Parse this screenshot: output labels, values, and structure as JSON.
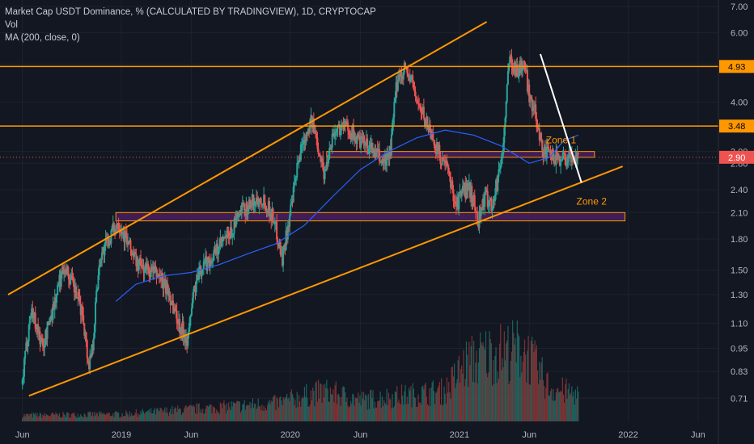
{
  "chart_data": {
    "type": "line",
    "title": "Market Cap USDT Dominance, % (CALCULATED BY TRADINGVIEW), 1D, CRYPTOCAP",
    "indicators": [
      "Vol",
      "MA (200, close, 0)"
    ],
    "y_scale": "log",
    "ylim": [
      0.62,
      7.2
    ],
    "xlim": [
      "2018-05-01",
      "2022-07-15"
    ],
    "x_ticks": [
      {
        "date": "2018-06-01",
        "label": "Jun"
      },
      {
        "date": "2019-01-01",
        "label": "2019"
      },
      {
        "date": "2019-06-01",
        "label": "Jun"
      },
      {
        "date": "2020-01-01",
        "label": "2020"
      },
      {
        "date": "2020-06-01",
        "label": "Jun"
      },
      {
        "date": "2021-01-01",
        "label": "2021"
      },
      {
        "date": "2021-06-01",
        "label": "Jun"
      },
      {
        "date": "2022-01-01",
        "label": "2022"
      },
      {
        "date": "2022-06-01",
        "label": "Jun"
      }
    ],
    "y_ticks": [
      "7.00",
      "6.00",
      "5.00",
      "4.00",
      "3.00",
      "2.80",
      "2.40",
      "2.10",
      "1.80",
      "1.50",
      "1.30",
      "1.10",
      "0.95",
      "0.83",
      "0.71"
    ],
    "series": [
      {
        "name": "USDT Dominance",
        "style": "candles",
        "x": [
          "2018-06-01",
          "2018-06-20",
          "2018-07-15",
          "2018-08-10",
          "2018-08-30",
          "2018-09-20",
          "2018-10-10",
          "2018-10-22",
          "2018-11-01",
          "2018-11-15",
          "2018-12-10",
          "2018-12-25",
          "2019-01-15",
          "2019-02-05",
          "2019-03-01",
          "2019-03-25",
          "2019-04-15",
          "2019-05-05",
          "2019-05-25",
          "2019-06-05",
          "2019-06-25",
          "2019-07-15",
          "2019-08-05",
          "2019-08-25",
          "2019-09-15",
          "2019-10-05",
          "2019-11-01",
          "2019-11-25",
          "2019-12-15",
          "2020-01-05",
          "2020-01-25",
          "2020-02-15",
          "2020-03-05",
          "2020-03-15",
          "2020-04-01",
          "2020-04-20",
          "2020-05-10",
          "2020-05-25",
          "2020-06-15",
          "2020-07-01",
          "2020-07-20",
          "2020-08-05",
          "2020-08-20",
          "2020-09-05",
          "2020-09-20",
          "2020-10-05",
          "2020-10-25",
          "2020-11-15",
          "2020-12-05",
          "2020-12-25",
          "2021-01-10",
          "2021-01-25",
          "2021-02-10",
          "2021-02-25",
          "2021-03-15",
          "2021-04-05",
          "2021-04-20",
          "2021-05-05",
          "2021-05-20",
          "2021-06-01",
          "2021-06-15",
          "2021-07-01",
          "2021-07-20",
          "2021-08-05",
          "2021-08-20",
          "2021-09-05",
          "2021-09-15"
        ],
        "values": [
          0.77,
          1.2,
          0.95,
          1.25,
          1.55,
          1.35,
          1.15,
          0.85,
          1.0,
          1.6,
          1.85,
          2.0,
          1.75,
          1.55,
          1.5,
          1.45,
          1.3,
          1.1,
          1.0,
          1.3,
          1.55,
          1.6,
          1.75,
          1.85,
          2.1,
          2.2,
          2.3,
          2.05,
          1.6,
          2.2,
          3.1,
          3.6,
          3.0,
          2.6,
          3.3,
          3.5,
          3.4,
          3.2,
          3.1,
          3.0,
          2.8,
          3.0,
          4.6,
          4.9,
          4.5,
          3.9,
          3.5,
          3.0,
          2.7,
          2.2,
          2.4,
          2.4,
          2.0,
          2.3,
          2.2,
          3.0,
          5.2,
          4.8,
          5.0,
          4.2,
          3.7,
          3.0,
          2.9,
          2.9,
          2.9,
          2.9,
          2.9
        ]
      },
      {
        "name": "MA (200, close, 0)",
        "style": "line",
        "color": "#2962ff",
        "x": [
          "2018-12-20",
          "2019-02-01",
          "2019-04-01",
          "2019-06-01",
          "2019-08-01",
          "2019-10-01",
          "2019-12-01",
          "2020-02-01",
          "2020-04-01",
          "2020-06-01",
          "2020-08-01",
          "2020-10-01",
          "2020-12-01",
          "2021-02-01",
          "2021-04-01",
          "2021-06-01",
          "2021-07-15",
          "2021-08-15",
          "2021-09-15"
        ],
        "values": [
          1.25,
          1.38,
          1.45,
          1.48,
          1.55,
          1.65,
          1.75,
          1.95,
          2.3,
          2.7,
          3.0,
          3.25,
          3.4,
          3.3,
          3.1,
          2.8,
          2.9,
          3.2,
          3.3
        ]
      }
    ],
    "volume": [
      {
        "date": "2018-06-01",
        "value": 0.1
      },
      {
        "date": "2019-01-01",
        "value": 0.12
      },
      {
        "date": "2019-06-01",
        "value": 0.2
      },
      {
        "date": "2019-12-01",
        "value": 0.3
      },
      {
        "date": "2020-03-15",
        "value": 0.5
      },
      {
        "date": "2020-06-01",
        "value": 0.35
      },
      {
        "date": "2020-12-01",
        "value": 0.5
      },
      {
        "date": "2021-01-15",
        "value": 0.95
      },
      {
        "date": "2021-02-25",
        "value": 1.1
      },
      {
        "date": "2021-05-20",
        "value": 1.2
      },
      {
        "date": "2021-07-15",
        "value": 0.55
      },
      {
        "date": "2021-09-15",
        "value": 0.45
      }
    ],
    "current_price": {
      "value": 2.9,
      "label": "2.90",
      "color": "#ef5350"
    },
    "horizontal_levels": [
      {
        "value": 4.93,
        "label": "4.93",
        "color": "#ff9800"
      },
      {
        "value": 3.48,
        "label": "3.48",
        "color": "#ff9800"
      }
    ],
    "trend_lines": [
      {
        "from": {
          "date": "2018-05-01",
          "value": 1.3
        },
        "to": {
          "date": "2021-03-01",
          "value": 6.4
        },
        "color": "#ff9800"
      },
      {
        "from": {
          "date": "2018-06-15",
          "value": 0.72
        },
        "to": {
          "date": "2021-12-20",
          "value": 2.75
        },
        "color": "#ff9800"
      },
      {
        "from": {
          "date": "2021-06-25",
          "value": 5.3
        },
        "to": {
          "date": "2021-09-22",
          "value": 2.5
        },
        "color": "#ffffff"
      }
    ],
    "zones": [
      {
        "label": "Zone 1",
        "x_start": "2020-03-20",
        "x_end": "2021-10-20",
        "low": 2.9,
        "high": 3.0
      },
      {
        "label": "Zone 2",
        "x_start": "2018-12-20",
        "x_end": "2021-12-25",
        "low": 2.0,
        "high": 2.1
      }
    ],
    "colors": {
      "background": "#131722",
      "up": "#26a69a",
      "down": "#ef5350",
      "level": "#ff9800",
      "ma": "#2962ff",
      "zone_fill": "#4a1f5e",
      "axis_text": "#b2b5be"
    }
  }
}
